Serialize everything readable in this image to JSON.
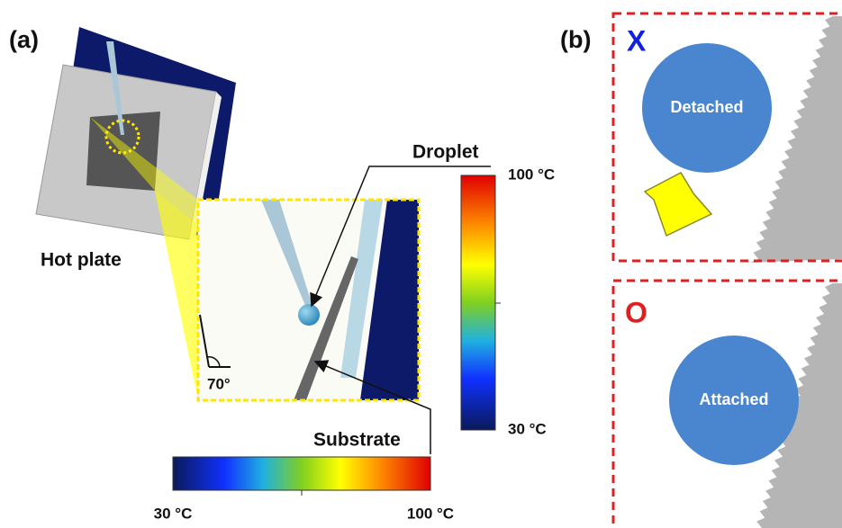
{
  "panel_a": {
    "label": "(a)",
    "hot_plate": "Hot plate",
    "droplet": "Droplet",
    "substrate": "Substrate",
    "angle": "70°",
    "vertical_colorbar": {
      "top": "100 °C",
      "bottom": "30 °C"
    },
    "horizontal_colorbar": {
      "left": "30 °C",
      "right": "100 °C"
    }
  },
  "panel_b": {
    "label": "(b)",
    "top": {
      "mark": "X",
      "state": "Detached"
    },
    "bottom": {
      "mark": "O",
      "state": "Attached"
    }
  }
}
